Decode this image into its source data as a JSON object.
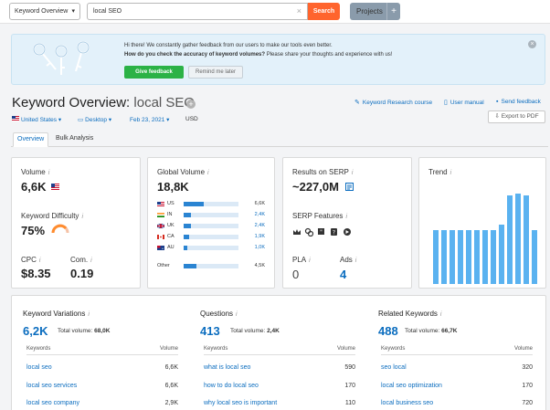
{
  "topbar": {
    "database_label": "Keyword Overview",
    "search_value": "local SEO",
    "search_button": "Search",
    "projects_button": "Projects",
    "projects_plus": "+"
  },
  "banner": {
    "line1": "Hi there! We constantly gather feedback from our users to make our tools even better.",
    "line2_bold": "How do you check the accuracy of keyword volumes?",
    "line2_rest": " Please share your thoughts and experience with us!",
    "give_feedback": "Give feedback",
    "remind_later": "Remind me later",
    "close": "×"
  },
  "header": {
    "title_prefix": "Keyword Overview:",
    "title_keyword": "local SEO",
    "title_plus": "+",
    "links": {
      "research_course": "Keyword Research course",
      "user_manual": "User manual",
      "send_feedback": "Send feedback"
    },
    "filters": {
      "country": "United States",
      "device": "Desktop",
      "date": "Feb 23, 2021",
      "currency": "USD"
    },
    "export": "Export to PDF"
  },
  "tabs": [
    "Overview",
    "Bulk Analysis"
  ],
  "volume_card": {
    "volume_label": "Volume",
    "volume_value": "6,6K",
    "kd_label": "Keyword Difficulty",
    "kd_value": "75%",
    "kd_fraction": 0.75,
    "cpc_label": "CPC",
    "cpc_value": "$8.35",
    "com_label": "Com.",
    "com_value": "0.19",
    "info": "i"
  },
  "global_volume": {
    "label": "Global Volume",
    "value": "18,8K",
    "rows": [
      {
        "cc": "US",
        "value": "6,6K",
        "fraction": 0.36,
        "link": false
      },
      {
        "cc": "IN",
        "value": "2,4K",
        "fraction": 0.13,
        "link": true
      },
      {
        "cc": "UK",
        "value": "2,4K",
        "fraction": 0.13,
        "link": true
      },
      {
        "cc": "CA",
        "value": "1,9K",
        "fraction": 0.1,
        "link": true
      },
      {
        "cc": "AU",
        "value": "1,0K",
        "fraction": 0.06,
        "link": true
      }
    ],
    "other": {
      "cc": "Other",
      "value": "4,5K",
      "fraction": 0.24
    }
  },
  "serp_card": {
    "results_label": "Results on SERP",
    "results_value": "~227,0M",
    "features_label": "SERP Features",
    "pla_label": "PLA",
    "pla_value": "0",
    "ads_label": "Ads",
    "ads_value": "4"
  },
  "trend": {
    "label": "Trend",
    "values": [
      0.55,
      0.55,
      0.55,
      0.55,
      0.55,
      0.55,
      0.55,
      0.55,
      0.6,
      0.9,
      0.92,
      0.9,
      0.55
    ]
  },
  "keyword_variations": {
    "title": "Keyword Variations",
    "count": "6,2K",
    "total_label": "Total volume:",
    "total_value": "68,0K",
    "col_keywords": "Keywords",
    "col_volume": "Volume",
    "rows": [
      {
        "kw": "local seo",
        "vol": "6,6K"
      },
      {
        "kw": "local seo services",
        "vol": "6,6K"
      },
      {
        "kw": "local seo company",
        "vol": "2,9K"
      }
    ]
  },
  "questions": {
    "title": "Questions",
    "count": "413",
    "total_label": "Total volume:",
    "total_value": "2,4K",
    "col_keywords": "Keywords",
    "col_volume": "Volume",
    "rows": [
      {
        "kw": "what is local seo",
        "vol": "590"
      },
      {
        "kw": "how to do local seo",
        "vol": "170"
      },
      {
        "kw": "why local seo is important",
        "vol": "110"
      }
    ]
  },
  "related": {
    "title": "Related Keywords",
    "count": "488",
    "total_label": "Total volume:",
    "total_value": "66,7K",
    "col_keywords": "Keywords",
    "col_volume": "Volume",
    "rows": [
      {
        "kw": "seo local",
        "vol": "320"
      },
      {
        "kw": "local seo optimization",
        "vol": "170"
      },
      {
        "kw": "local business seo",
        "vol": "720"
      }
    ]
  }
}
